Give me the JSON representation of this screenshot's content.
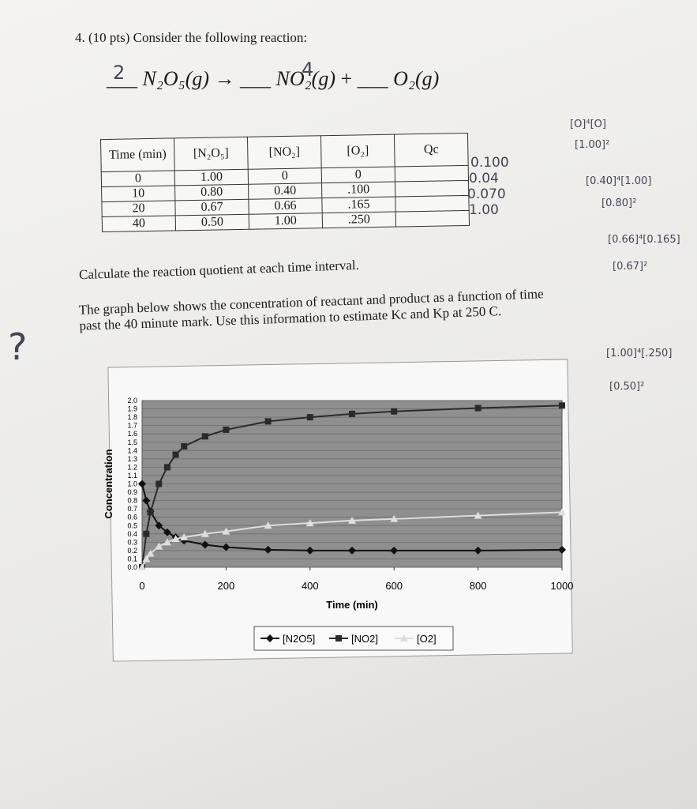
{
  "question": {
    "title": "4. (10 pts) Consider the following reaction:",
    "reaction": {
      "reactant": "N₂O₅(g)",
      "arrow": "→",
      "product1": "NO₂(g)",
      "plus": "+",
      "product2": "O₂(g)",
      "coef1": "2",
      "coef2": "4"
    }
  },
  "table": {
    "headers": [
      "Time (min)",
      "[N₂O₅]",
      "[NO₂]",
      "[O₂]",
      "Qc"
    ],
    "rows": [
      [
        "0",
        "1.00",
        "0",
        "0",
        ""
      ],
      [
        "10",
        "0.80",
        "0.40",
        ".100",
        ""
      ],
      [
        "20",
        "0.67",
        "0.66",
        ".165",
        ""
      ],
      [
        "40",
        "0.50",
        "1.00",
        ".250",
        ""
      ]
    ]
  },
  "handwritten": {
    "qc_values": [
      "0.100",
      "0.04",
      "0.070",
      "1.00"
    ],
    "work": [
      "[O]⁴[O]",
      "[1.00]²",
      "[0.40]⁴[1.00]",
      "[0.80]²",
      "[0.66]⁴[0.165]",
      "[0.67]²",
      "[1.00]⁴[.250]",
      "[0.50]²"
    ],
    "question_mark": "?"
  },
  "instructions": [
    "Calculate the reaction quotient at each time interval.",
    "The graph below shows the concentration of reactant and product as a function of time past the 40 minute mark. Use this information to estimate Kc and Kp at 250 C."
  ],
  "chart_data": {
    "type": "line",
    "x_label": "Time (min)",
    "y_label": "Concentration",
    "x": [
      0,
      10,
      20,
      40,
      60,
      80,
      100,
      150,
      200,
      300,
      400,
      500,
      600,
      800,
      1000
    ],
    "series": [
      {
        "name": "[N2O5]",
        "color": "#111111",
        "marker": "diamond",
        "values": [
          1.0,
          0.8,
          0.67,
          0.5,
          0.42,
          0.36,
          0.32,
          0.27,
          0.24,
          0.21,
          0.2,
          0.2,
          0.2,
          0.2,
          0.21
        ]
      },
      {
        "name": "[NO2]",
        "color": "#2a2a2a",
        "marker": "square",
        "values": [
          0,
          0.4,
          0.66,
          1.0,
          1.2,
          1.35,
          1.45,
          1.57,
          1.65,
          1.75,
          1.8,
          1.84,
          1.87,
          1.91,
          1.94
        ]
      },
      {
        "name": "[O2]",
        "color": "#dedede",
        "marker": "triangle",
        "values": [
          0,
          0.1,
          0.165,
          0.25,
          0.3,
          0.34,
          0.36,
          0.4,
          0.43,
          0.5,
          0.53,
          0.56,
          0.58,
          0.62,
          0.66
        ]
      }
    ],
    "xlim": [
      0,
      1000
    ],
    "xticks": [
      0,
      200,
      400,
      600,
      800,
      1000
    ],
    "ylim": [
      0,
      2
    ],
    "yticks": [
      {
        "value": 0,
        "label": "0.0"
      },
      0.1,
      0.2,
      0.3,
      0.4,
      0.5,
      0.6,
      0.7,
      0.8,
      0.9,
      {
        "value": 1,
        "label": "1.0"
      },
      1.1,
      1.2,
      1.3,
      1.4,
      1.5,
      1.6,
      1.7,
      1.8,
      1.9,
      {
        "value": 2,
        "label": "2.0"
      }
    ],
    "grid": true,
    "legend": "bottom"
  }
}
